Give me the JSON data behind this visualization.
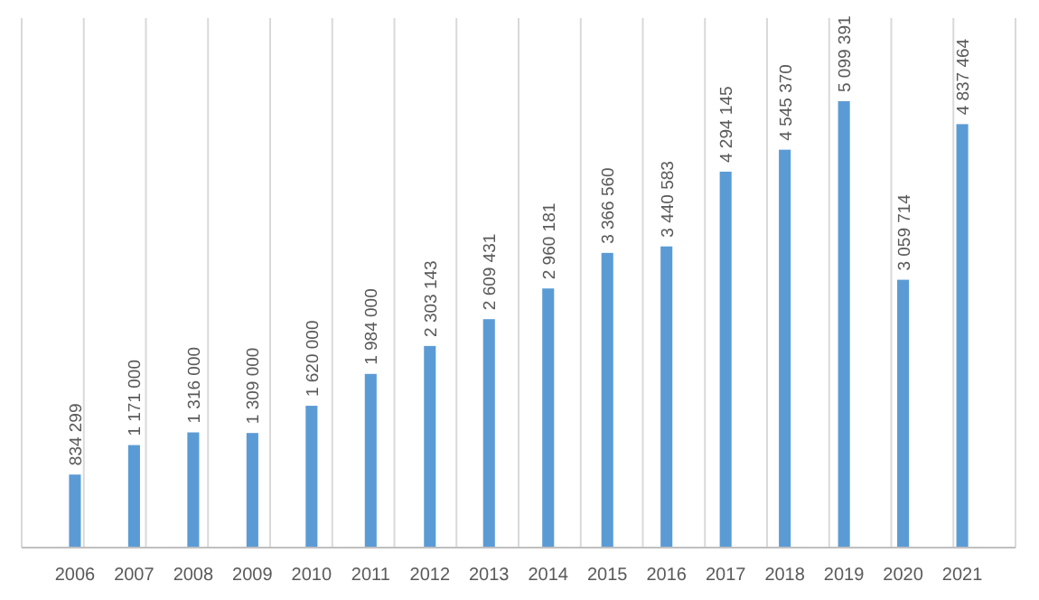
{
  "chart_data": {
    "type": "bar",
    "categories": [
      "2006",
      "2007",
      "2008",
      "2009",
      "2010",
      "2011",
      "2012",
      "2013",
      "2014",
      "2015",
      "2016",
      "2017",
      "2018",
      "2019",
      "2020",
      "2021"
    ],
    "values": [
      834299,
      1171000,
      1316000,
      1309000,
      1620000,
      1984000,
      2303143,
      2609431,
      2960181,
      3366560,
      3440583,
      4294145,
      4545370,
      5099391,
      3059714,
      4837464
    ],
    "value_labels": [
      "834 299",
      "1 171 000",
      "1 316 000",
      "1 309 000",
      "1 620 000",
      "1 984 000",
      "2 303 143",
      "2 609 431",
      "2 960 181",
      "3 366 560",
      "3 440 583",
      "4 294 145",
      "4 545 370",
      "5 099 391",
      "3 059 714",
      "4 837 464"
    ],
    "color": "#5b9bd5",
    "grid": "x"
  }
}
